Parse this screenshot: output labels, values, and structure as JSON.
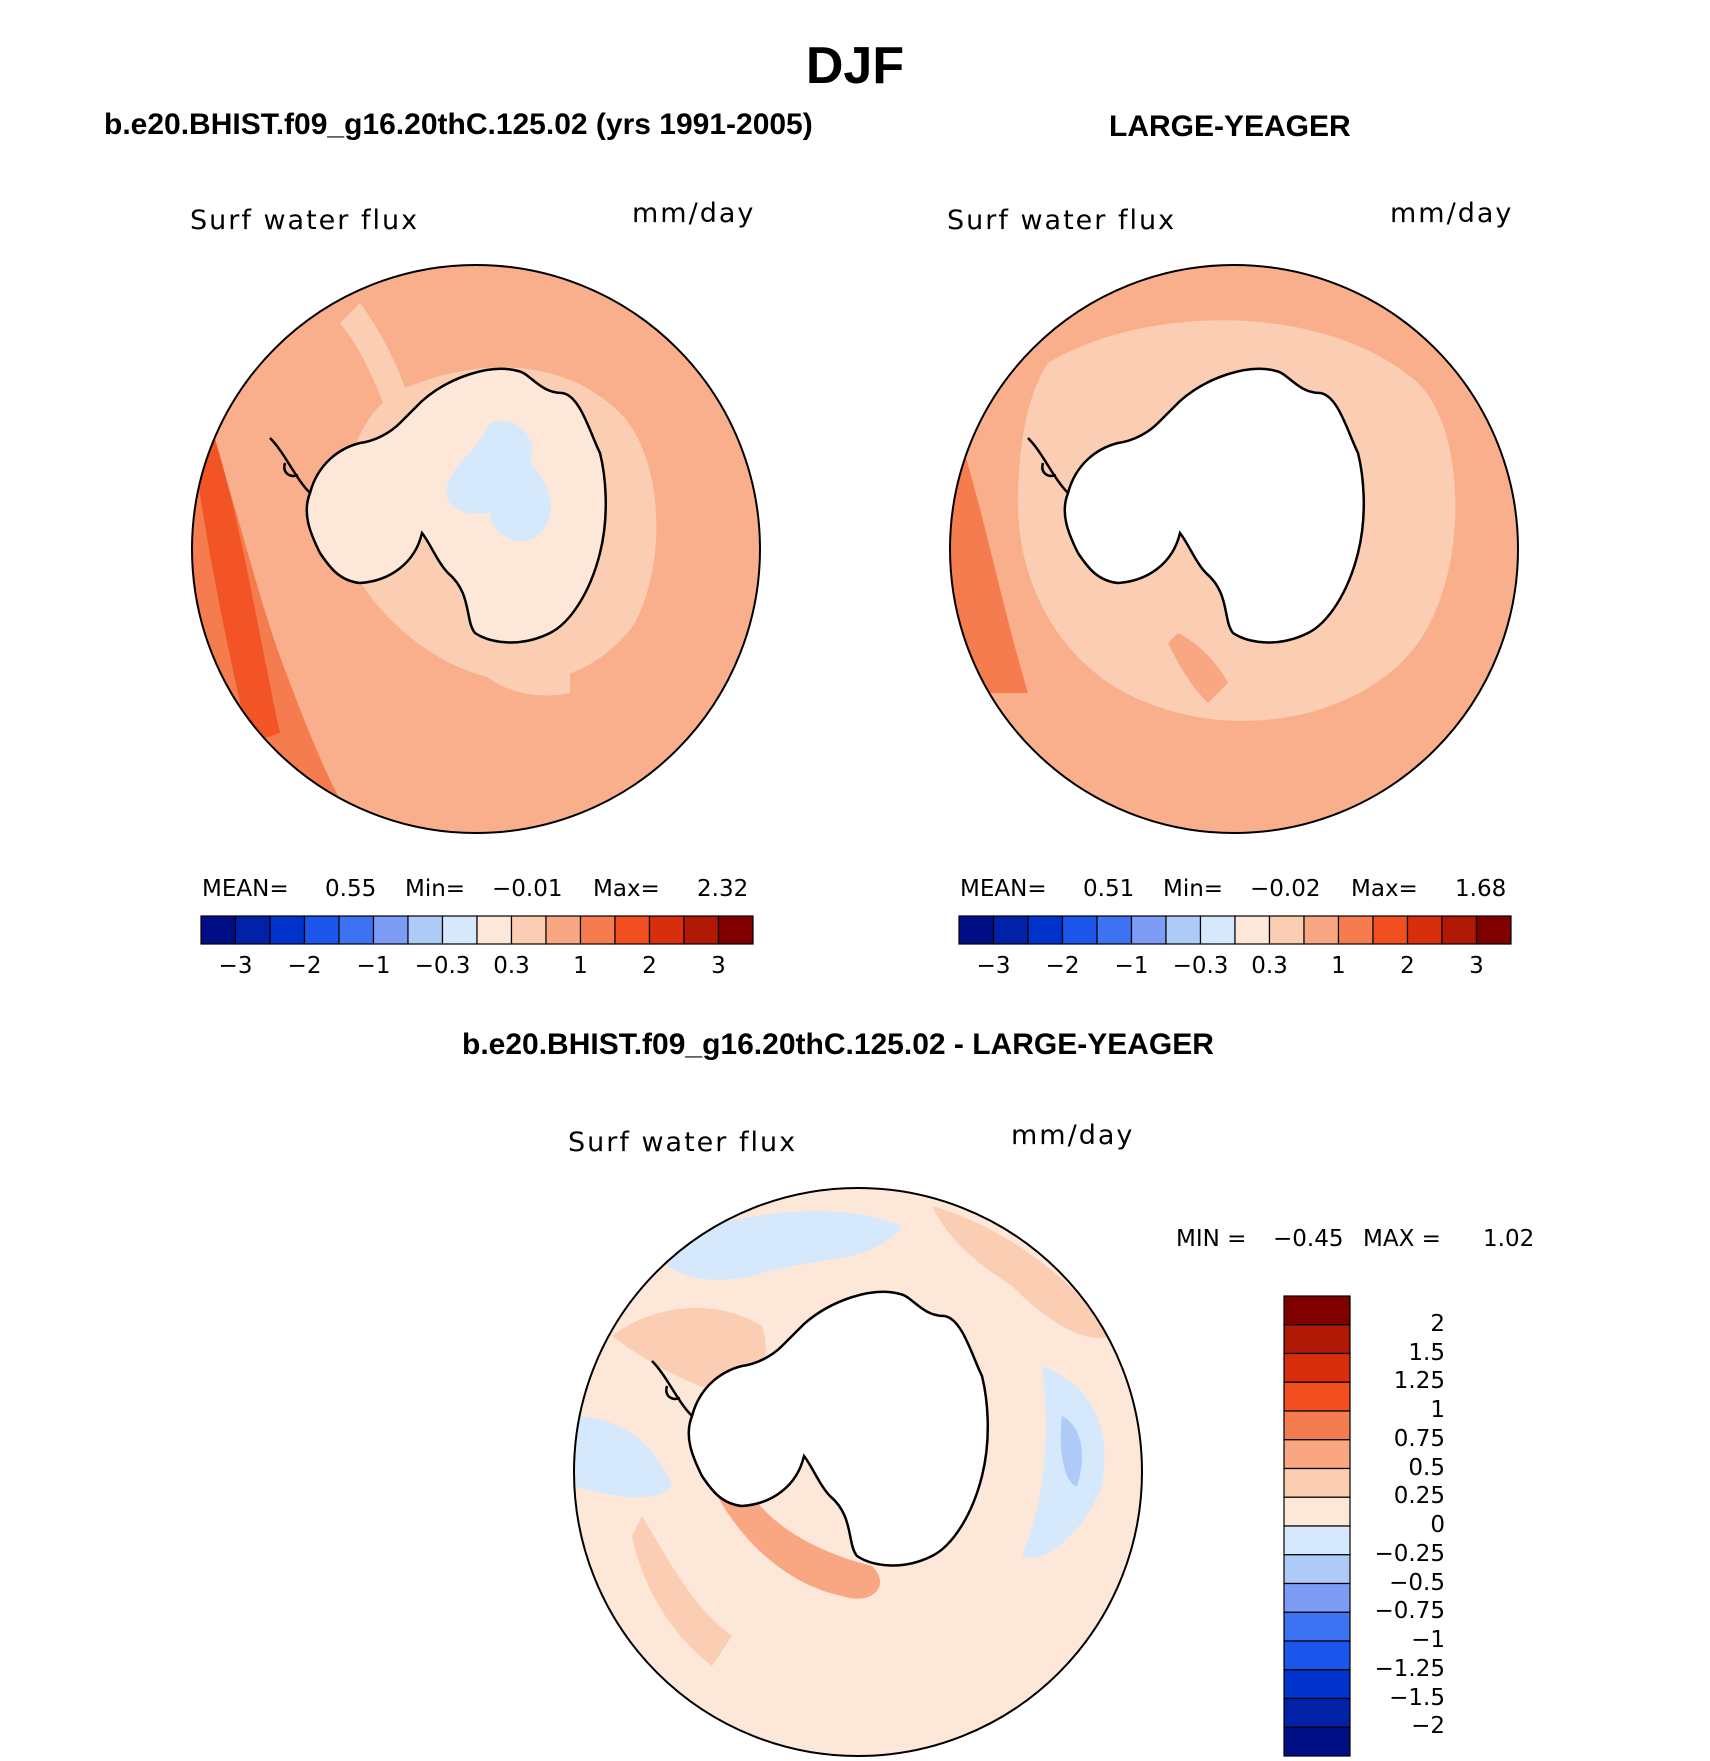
{
  "figure": {
    "season": "DJF",
    "case_title": "b.e20.BHIST.f09_g16.20thC.125.02 (yrs 1991-2005)",
    "obs_title": "LARGE-YEAGER",
    "diff_title": "b.e20.BHIST.f09_g16.20thC.125.02 - LARGE-YEAGER"
  },
  "panels": [
    {
      "variable": "Surf water flux",
      "units": "mm/day",
      "mean_label": "MEAN=",
      "mean": "0.55",
      "min_label": "Min=",
      "min": "−0.01",
      "max_label": "Max=",
      "max": "2.32",
      "base_color": "#F9AF8C",
      "interior_color": "#FCE7D8",
      "interior_blob_color": "#D6E8FB"
    },
    {
      "variable": "Surf water flux",
      "units": "mm/day",
      "mean_label": "MEAN=",
      "mean": "0.51",
      "min_label": "Min=",
      "min": "−0.02",
      "max_label": "Max=",
      "max": "1.68",
      "base_color": "#F9AF8C",
      "interior_color": "#FFFFFF",
      "interior_blob_color": "#FFFFFF"
    }
  ],
  "colorbar_horizontal": {
    "colors": [
      "#000E85",
      "#0021A8",
      "#0033CC",
      "#1C55EC",
      "#3D72F2",
      "#7D9CF6",
      "#AECBF8",
      "#D6E8FB",
      "#FCE7D8",
      "#FBCDB2",
      "#F9A783",
      "#F57C4E",
      "#F24E1F",
      "#D92E0C",
      "#B01A05",
      "#800000"
    ],
    "ticks": [
      "−3",
      "−2",
      "−1",
      "−0.3",
      "0.3",
      "1",
      "2",
      "3"
    ]
  },
  "diff_panel": {
    "variable": "Surf water flux",
    "units": "mm/day",
    "min_label": "MIN =",
    "min": "−0.45",
    "max_label": "MAX =",
    "max": "1.02",
    "base_color": "#FCE7D8"
  },
  "colorbar_vertical": {
    "colors_top_to_bottom": [
      "#800000",
      "#B01A05",
      "#D92E0C",
      "#F24E1F",
      "#F57C4E",
      "#F9A783",
      "#FBCDB2",
      "#FCE7D8",
      "#D6E8FB",
      "#AECBF8",
      "#7D9CF6",
      "#3D72F2",
      "#1C55EC",
      "#0033CC",
      "#0021A8",
      "#000E85"
    ],
    "ticks": [
      "2",
      "1.5",
      "1.25",
      "1",
      "0.75",
      "0.5",
      "0.25",
      "0",
      "−0.25",
      "−0.5",
      "−0.75",
      "−1",
      "−1.25",
      "−1.5",
      "−2"
    ]
  }
}
